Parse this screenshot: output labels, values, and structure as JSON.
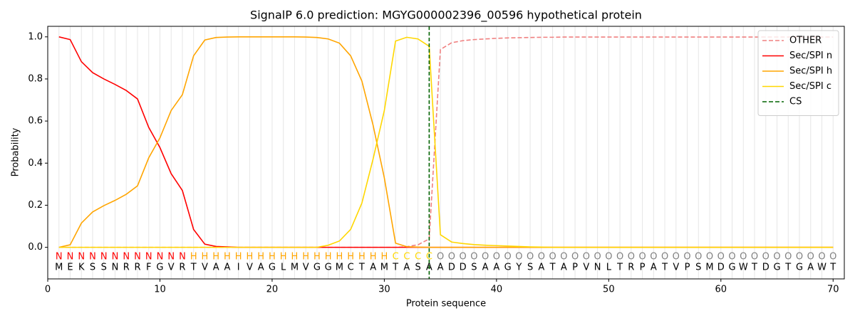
{
  "chart_data": {
    "type": "line",
    "title": "SignalP 6.0 prediction: MGYG000002396_00596 hypothetical protein",
    "xlabel": "Protein sequence",
    "ylabel": "Probability",
    "x": [
      1,
      2,
      3,
      4,
      5,
      6,
      7,
      8,
      9,
      10,
      11,
      12,
      13,
      14,
      15,
      16,
      17,
      18,
      19,
      20,
      21,
      22,
      23,
      24,
      25,
      26,
      27,
      28,
      29,
      30,
      31,
      32,
      33,
      34,
      35,
      36,
      37,
      38,
      39,
      40,
      41,
      42,
      43,
      44,
      45,
      46,
      47,
      48,
      49,
      50,
      51,
      52,
      53,
      54,
      55,
      56,
      57,
      58,
      59,
      60,
      61,
      62,
      63,
      64,
      65,
      66,
      67,
      68,
      69,
      70
    ],
    "series": [
      {
        "name": "OTHER",
        "color": "#f08080",
        "dash": true,
        "values": [
          0,
          0,
          0,
          0,
          0,
          0,
          0,
          0,
          0,
          0,
          0,
          0,
          0,
          0,
          0,
          0,
          0,
          0,
          0,
          0,
          0,
          0,
          0,
          0,
          0,
          0,
          0,
          0,
          0,
          0,
          0,
          0.003,
          0.012,
          0.04,
          0.94,
          0.972,
          0.982,
          0.987,
          0.99,
          0.993,
          0.995,
          0.996,
          0.997,
          0.998,
          0.998,
          0.999,
          0.999,
          0.999,
          0.999,
          0.999,
          0.999,
          0.999,
          0.999,
          0.999,
          0.999,
          0.999,
          0.999,
          0.999,
          0.999,
          0.999,
          0.999,
          0.999,
          0.999,
          0.999,
          0.999,
          0.999,
          0.999,
          0.999,
          0.999,
          0.999
        ]
      },
      {
        "name": "Sec/SPI n",
        "color": "red",
        "dash": false,
        "values": [
          1.0,
          0.987,
          0.882,
          0.83,
          0.8,
          0.774,
          0.745,
          0.705,
          0.57,
          0.474,
          0.35,
          0.27,
          0.085,
          0.015,
          0.004,
          0.002,
          0,
          0,
          0,
          0,
          0,
          0,
          0,
          0,
          0,
          0,
          0,
          0,
          0,
          0,
          0,
          0,
          0,
          0,
          0,
          0,
          0,
          0,
          0,
          0,
          0,
          0,
          0,
          0,
          0,
          0,
          0,
          0,
          0,
          0,
          0,
          0,
          0,
          0,
          0,
          0,
          0,
          0,
          0,
          0,
          0,
          0,
          0,
          0,
          0,
          0,
          0,
          0,
          0,
          0
        ]
      },
      {
        "name": "Sec/SPI h",
        "color": "orange",
        "dash": false,
        "values": [
          0,
          0.012,
          0.115,
          0.168,
          0.198,
          0.223,
          0.252,
          0.292,
          0.425,
          0.52,
          0.65,
          0.725,
          0.91,
          0.985,
          0.997,
          0.999,
          1,
          1,
          1,
          1,
          1,
          1,
          0.999,
          0.997,
          0.99,
          0.97,
          0.91,
          0.79,
          0.58,
          0.33,
          0.02,
          0.003,
          0.001,
          0,
          0,
          0,
          0,
          0,
          0,
          0,
          0,
          0,
          0,
          0,
          0,
          0,
          0,
          0,
          0,
          0,
          0,
          0,
          0,
          0,
          0,
          0,
          0,
          0,
          0,
          0,
          0,
          0,
          0,
          0,
          0,
          0,
          0,
          0,
          0,
          0
        ]
      },
      {
        "name": "Sec/SPI c",
        "color": "gold",
        "dash": false,
        "values": [
          0,
          0,
          0,
          0,
          0,
          0,
          0,
          0,
          0,
          0,
          0,
          0,
          0,
          0,
          0,
          0,
          0,
          0,
          0,
          0,
          0,
          0,
          0,
          0,
          0.01,
          0.03,
          0.085,
          0.21,
          0.42,
          0.65,
          0.98,
          0.998,
          0.99,
          0.955,
          0.06,
          0.025,
          0.018,
          0.013,
          0.01,
          0.008,
          0.006,
          0.004,
          0.002,
          0.001,
          0,
          0,
          0,
          0,
          0,
          0,
          0,
          0,
          0,
          0,
          0,
          0,
          0,
          0,
          0,
          0,
          0,
          0,
          0,
          0,
          0,
          0,
          0,
          0,
          0,
          0
        ]
      }
    ],
    "cs": {
      "name": "CS",
      "x": 34,
      "color": "darkgreen"
    },
    "sequence": [
      "M",
      "E",
      "K",
      "S",
      "S",
      "N",
      "R",
      "R",
      "F",
      "G",
      "V",
      "R",
      "T",
      "V",
      "A",
      "A",
      "I",
      "V",
      "A",
      "G",
      "L",
      "M",
      "V",
      "G",
      "G",
      "M",
      "C",
      "T",
      "A",
      "M",
      "T",
      "A",
      "S",
      "A",
      "A",
      "D",
      "D",
      "S",
      "A",
      "A",
      "G",
      "Y",
      "S",
      "A",
      "T",
      "A",
      "P",
      "V",
      "N",
      "L",
      "T",
      "R",
      "P",
      "A",
      "T",
      "V",
      "P",
      "S",
      "M",
      "D",
      "G",
      "W",
      "T",
      "D",
      "G",
      "T",
      "G",
      "A",
      "W",
      "T"
    ],
    "regions": [
      "N",
      "N",
      "N",
      "N",
      "N",
      "N",
      "N",
      "N",
      "N",
      "N",
      "N",
      "N",
      "H",
      "H",
      "H",
      "H",
      "H",
      "H",
      "H",
      "H",
      "H",
      "H",
      "H",
      "H",
      "H",
      "H",
      "H",
      "H",
      "H",
      "H",
      "C",
      "C",
      "C",
      "C",
      "O",
      "O",
      "O",
      "O",
      "O",
      "O",
      "O",
      "O",
      "O",
      "O",
      "O",
      "O",
      "O",
      "O",
      "O",
      "O",
      "O",
      "O",
      "O",
      "O",
      "O",
      "O",
      "O",
      "O",
      "O",
      "O",
      "O",
      "O",
      "O",
      "O",
      "O",
      "O",
      "O",
      "O",
      "O",
      "O"
    ],
    "region_colors": {
      "N": "red",
      "H": "orange",
      "C": "gold",
      "O": "gray"
    },
    "xlim": [
      0,
      71
    ],
    "ylim": [
      -0.15,
      1.05
    ],
    "xticks": [
      0,
      10,
      20,
      30,
      40,
      50,
      60,
      70
    ],
    "yticks": [
      {
        "value": 0,
        "label": "0.0"
      },
      {
        "value": 0.2,
        "label": "0.2"
      },
      {
        "value": 0.4,
        "label": "0.4"
      },
      {
        "value": 0.6,
        "label": "0.6"
      },
      {
        "value": 0.8,
        "label": "0.8"
      },
      {
        "value": 1.0,
        "label": "1.0"
      }
    ],
    "legend": "upper right"
  }
}
